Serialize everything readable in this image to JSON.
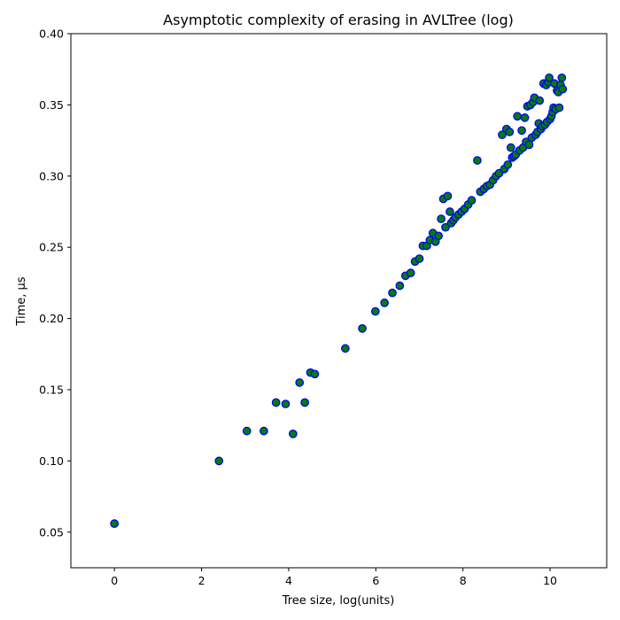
{
  "chart_data": {
    "type": "scatter",
    "title": "Asymptotic complexity of erasing in AVLTree (log)",
    "xlabel": "Tree size, log(units)",
    "ylabel": "Time, μs",
    "xlim": [
      -1,
      11.3
    ],
    "ylim": [
      0.025,
      0.4
    ],
    "xticks": [
      0,
      2,
      4,
      6,
      8,
      10
    ],
    "yticks": [
      0.05,
      0.1,
      0.15,
      0.2,
      0.25,
      0.3,
      0.35,
      0.4
    ],
    "xtick_labels": [
      "0",
      "2",
      "4",
      "6",
      "8",
      "10"
    ],
    "ytick_labels": [
      "0.05",
      "0.10",
      "0.15",
      "0.20",
      "0.25",
      "0.30",
      "0.35",
      "0.40"
    ],
    "grid": false,
    "legend": "none",
    "marker_fill": "#008000",
    "marker_edge": "#0000ff",
    "points": [
      [
        0.0,
        0.056
      ],
      [
        2.4,
        0.1
      ],
      [
        3.04,
        0.121
      ],
      [
        3.43,
        0.121
      ],
      [
        3.71,
        0.141
      ],
      [
        3.93,
        0.14
      ],
      [
        4.1,
        0.119
      ],
      [
        4.25,
        0.155
      ],
      [
        4.37,
        0.141
      ],
      [
        4.5,
        0.162
      ],
      [
        4.6,
        0.161
      ],
      [
        5.3,
        0.179
      ],
      [
        5.69,
        0.193
      ],
      [
        5.99,
        0.205
      ],
      [
        6.2,
        0.211
      ],
      [
        6.38,
        0.218
      ],
      [
        6.55,
        0.223
      ],
      [
        6.68,
        0.23
      ],
      [
        6.8,
        0.232
      ],
      [
        6.9,
        0.24
      ],
      [
        7.0,
        0.242
      ],
      [
        7.08,
        0.251
      ],
      [
        7.17,
        0.251
      ],
      [
        7.24,
        0.255
      ],
      [
        7.31,
        0.26
      ],
      [
        7.37,
        0.254
      ],
      [
        7.44,
        0.258
      ],
      [
        7.5,
        0.27
      ],
      [
        7.55,
        0.284
      ],
      [
        7.6,
        0.264
      ],
      [
        7.65,
        0.286
      ],
      [
        7.7,
        0.275
      ],
      [
        7.73,
        0.267
      ],
      [
        7.78,
        0.269
      ],
      [
        7.83,
        0.271
      ],
      [
        7.9,
        0.273
      ],
      [
        7.97,
        0.275
      ],
      [
        8.04,
        0.277
      ],
      [
        8.12,
        0.28
      ],
      [
        8.2,
        0.283
      ],
      [
        8.33,
        0.311
      ],
      [
        8.4,
        0.289
      ],
      [
        8.48,
        0.291
      ],
      [
        8.55,
        0.293
      ],
      [
        8.62,
        0.294
      ],
      [
        8.69,
        0.297
      ],
      [
        8.76,
        0.3
      ],
      [
        8.83,
        0.302
      ],
      [
        8.9,
        0.329
      ],
      [
        8.95,
        0.305
      ],
      [
        9.0,
        0.333
      ],
      [
        9.03,
        0.308
      ],
      [
        9.07,
        0.331
      ],
      [
        9.1,
        0.32
      ],
      [
        9.13,
        0.313
      ],
      [
        9.17,
        0.314
      ],
      [
        9.21,
        0.315
      ],
      [
        9.25,
        0.342
      ],
      [
        9.3,
        0.318
      ],
      [
        9.35,
        0.332
      ],
      [
        9.38,
        0.32
      ],
      [
        9.42,
        0.341
      ],
      [
        9.45,
        0.324
      ],
      [
        9.48,
        0.349
      ],
      [
        9.52,
        0.322
      ],
      [
        9.55,
        0.35
      ],
      [
        9.58,
        0.327
      ],
      [
        9.61,
        0.352
      ],
      [
        9.64,
        0.355
      ],
      [
        9.67,
        0.329
      ],
      [
        9.71,
        0.331
      ],
      [
        9.74,
        0.337
      ],
      [
        9.76,
        0.353
      ],
      [
        9.79,
        0.333
      ],
      [
        9.82,
        0.335
      ],
      [
        9.85,
        0.365
      ],
      [
        9.88,
        0.336
      ],
      [
        9.91,
        0.364
      ],
      [
        9.93,
        0.338
      ],
      [
        9.96,
        0.366
      ],
      [
        9.98,
        0.369
      ],
      [
        10.0,
        0.34
      ],
      [
        10.03,
        0.342
      ],
      [
        10.06,
        0.345
      ],
      [
        10.08,
        0.348
      ],
      [
        10.1,
        0.365
      ],
      [
        10.13,
        0.347
      ],
      [
        10.16,
        0.36
      ],
      [
        10.19,
        0.359
      ],
      [
        10.21,
        0.348
      ],
      [
        10.24,
        0.364
      ],
      [
        10.27,
        0.369
      ],
      [
        10.29,
        0.361
      ]
    ]
  }
}
